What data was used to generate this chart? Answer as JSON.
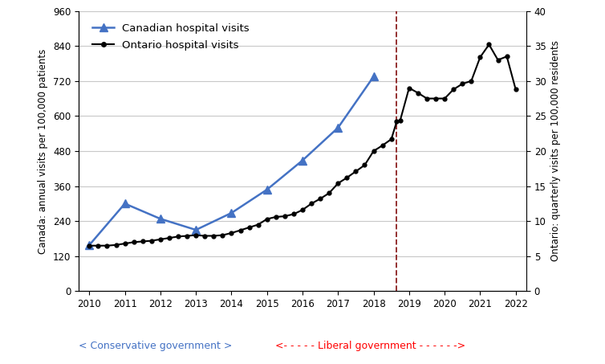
{
  "canada_x": [
    2010,
    2011,
    2012,
    2013,
    2014,
    2015,
    2016,
    2017,
    2018
  ],
  "canada_y": [
    158,
    300,
    248,
    210,
    268,
    348,
    448,
    560,
    735
  ],
  "ontario_x": [
    2010.0,
    2010.25,
    2010.5,
    2010.75,
    2011.0,
    2011.25,
    2011.5,
    2011.75,
    2012.0,
    2012.25,
    2012.5,
    2012.75,
    2013.0,
    2013.25,
    2013.5,
    2013.75,
    2014.0,
    2014.25,
    2014.5,
    2014.75,
    2015.0,
    2015.25,
    2015.5,
    2015.75,
    2016.0,
    2016.25,
    2016.5,
    2016.75,
    2017.0,
    2017.25,
    2017.5,
    2017.75,
    2018.0,
    2018.25,
    2018.5,
    2018.65,
    2018.75,
    2019.0,
    2019.25,
    2019.5,
    2019.75,
    2020.0,
    2020.25,
    2020.5,
    2020.75,
    2021.0,
    2021.25,
    2021.5,
    2021.75,
    2022.0
  ],
  "ontario_y_right": [
    6.5,
    6.5,
    6.5,
    6.6,
    6.8,
    7.0,
    7.1,
    7.2,
    7.4,
    7.6,
    7.8,
    7.9,
    8.0,
    7.9,
    7.9,
    8.0,
    8.3,
    8.7,
    9.1,
    9.5,
    10.3,
    10.6,
    10.7,
    11.0,
    11.6,
    12.5,
    13.2,
    14.0,
    15.4,
    16.2,
    17.1,
    18.0,
    20.0,
    20.8,
    21.7,
    24.2,
    24.4,
    29.0,
    28.3,
    27.5,
    27.5,
    27.5,
    28.8,
    29.6,
    30.0,
    33.4,
    35.2,
    33.0,
    33.5,
    28.8
  ],
  "vline_x": 2018.65,
  "ylim_left": [
    0,
    960
  ],
  "ylim_right": [
    0,
    40
  ],
  "yticks_left": [
    0,
    120,
    240,
    360,
    480,
    600,
    720,
    840,
    960
  ],
  "yticks_right": [
    0,
    5,
    10,
    15,
    20,
    25,
    30,
    35,
    40
  ],
  "xticks": [
    2010,
    2011,
    2012,
    2013,
    2014,
    2015,
    2016,
    2017,
    2018,
    2019,
    2020,
    2021,
    2022
  ],
  "ylabel_left": "Canada: annual visits per 100,000 patients",
  "ylabel_right": "Ontario: quarterly visits per 100,000 residents",
  "canada_color": "#4472C4",
  "ontario_color": "#000000",
  "vline_color": "#8B2020",
  "conservative_text": "< Conservative government >",
  "liberal_text": "<- - - - - Liberal government - - - - - ->",
  "conservative_color": "#4472C4",
  "liberal_color": "#FF0000",
  "legend_canada": "Canadian hospital visits",
  "legend_ontario": "Ontario hospital visits",
  "background_color": "#FFFFFF",
  "grid_color": "#C8C8C8"
}
